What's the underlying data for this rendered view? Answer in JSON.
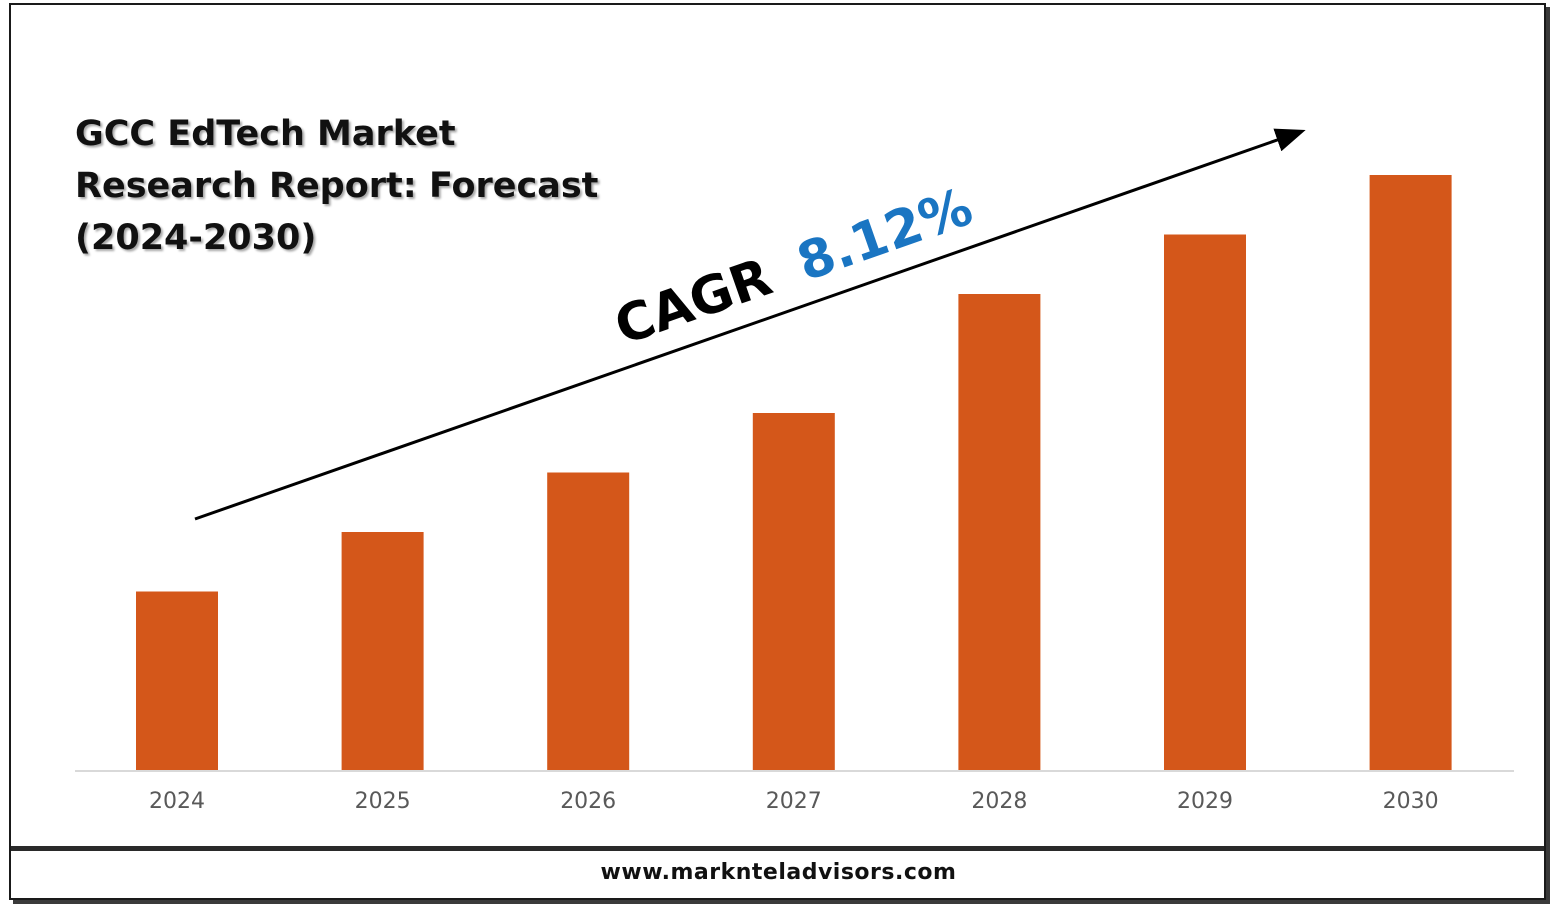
{
  "title_lines": [
    "GCC EdTech Market",
    "Research Report: Forecast",
    "(2024-2030)"
  ],
  "chart_data": {
    "type": "bar",
    "categories": [
      "2024",
      "2025",
      "2026",
      "2027",
      "2028",
      "2029",
      "2030"
    ],
    "values": [
      30,
      40,
      50,
      60,
      80,
      90,
      100
    ],
    "ylim": [
      0,
      100
    ],
    "grid": false,
    "bar_color": "#d4571a",
    "annotation": {
      "prefix": "CAGR",
      "value": "8.12%",
      "prefix_color": "#000000",
      "value_color": "#1a75c2"
    }
  },
  "footer": {
    "url": "www.marknteladvisors.com"
  }
}
